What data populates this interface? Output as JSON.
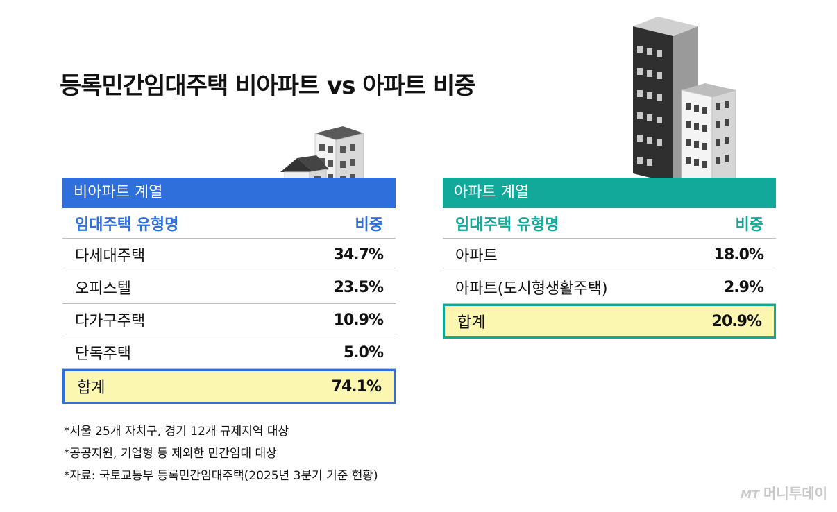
{
  "title": "등록민간임대주택 비아파트 vs 아파트 비중",
  "chart_data": [
    {
      "type": "table",
      "title": "비아파트 계열",
      "columns": [
        "임대주택 유형명",
        "비중"
      ],
      "rows": [
        {
          "name": "다세대주택",
          "value": "34.7%"
        },
        {
          "name": "오피스텔",
          "value": "23.5%"
        },
        {
          "name": "다가구주택",
          "value": "10.9%"
        },
        {
          "name": "단독주택",
          "value": "5.0%"
        }
      ],
      "total": {
        "name": "합계",
        "value": "74.1%"
      },
      "accent_color": "#2f6fdb"
    },
    {
      "type": "table",
      "title": "아파트 계열",
      "columns": [
        "임대주택 유형명",
        "비중"
      ],
      "rows": [
        {
          "name": "아파트",
          "value": "18.0%"
        },
        {
          "name": "아파트(도시형생활주택)",
          "value": "2.9%"
        }
      ],
      "total": {
        "name": "합계",
        "value": "20.9%"
      },
      "accent_color": "#12a89a"
    }
  ],
  "notes": [
    "*서울 25개 자치구, 경기 12개 규제지역 대상",
    "*공공지원, 기업형 등 제외한 민간임대 대상",
    "*자료: 국토교통부 등록민간임대주택(2025년 3분기 기준 현황)"
  ],
  "watermark": {
    "mark": "MT",
    "text": "머니투데이"
  },
  "icons": {
    "left": "house-and-building-icon",
    "right": "skyscrapers-icon"
  },
  "colors": {
    "highlight": "#fbf7b1"
  }
}
